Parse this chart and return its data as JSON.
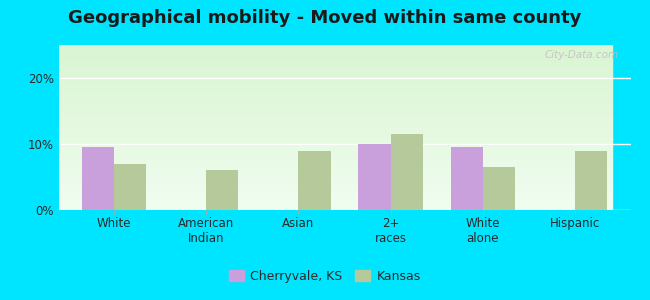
{
  "title": "Geographical mobility - Moved within same county",
  "categories": [
    "White",
    "American\nIndian",
    "Asian",
    "2+\nraces",
    "White\nalone",
    "Hispanic"
  ],
  "cherryvale_values": [
    9.5,
    0,
    0,
    10.0,
    9.5,
    0
  ],
  "kansas_values": [
    7.0,
    6.0,
    9.0,
    11.5,
    6.5,
    9.0
  ],
  "cherryvale_color": "#c9a0dc",
  "kansas_color": "#b5c99a",
  "bar_width": 0.35,
  "ylim": [
    0,
    25
  ],
  "yticks": [
    0,
    10,
    20
  ],
  "ytick_labels": [
    "0%",
    "10%",
    "20%"
  ],
  "outer_background": "#00e5ff",
  "legend_labels": [
    "Cherryvale, KS",
    "Kansas"
  ],
  "watermark": "City-Data.com",
  "title_fontsize": 13,
  "axis_fontsize": 8.5,
  "legend_fontsize": 9
}
